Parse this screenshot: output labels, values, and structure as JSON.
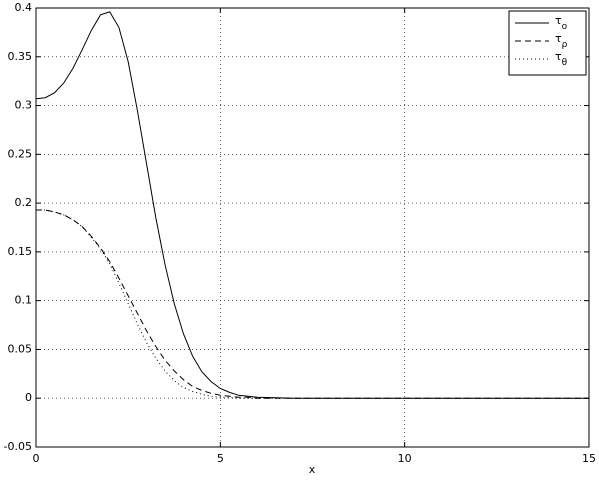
{
  "chart_data": {
    "type": "line",
    "xlabel": "x",
    "x": [
      0,
      0.25,
      0.5,
      0.75,
      1,
      1.25,
      1.5,
      1.75,
      2,
      2.25,
      2.5,
      2.75,
      3,
      3.25,
      3.5,
      3.75,
      4,
      4.25,
      4.5,
      4.75,
      5,
      5.25,
      5.5,
      5.75,
      6,
      7,
      8,
      10,
      12,
      15
    ],
    "series": [
      {
        "name": "τo",
        "color": "#000000",
        "dash": "solid",
        "values": [
          0.307,
          0.308,
          0.313,
          0.323,
          0.338,
          0.357,
          0.377,
          0.393,
          0.396,
          0.38,
          0.345,
          0.295,
          0.24,
          0.185,
          0.137,
          0.097,
          0.066,
          0.043,
          0.027,
          0.017,
          0.01,
          0.006,
          0.003,
          0.002,
          0.001,
          0,
          0,
          0,
          0,
          0
        ]
      },
      {
        "name": "τρ",
        "color": "#000000",
        "dash": "dashed",
        "values": [
          0.193,
          0.193,
          0.191,
          0.188,
          0.183,
          0.176,
          0.166,
          0.154,
          0.14,
          0.123,
          0.105,
          0.087,
          0.069,
          0.053,
          0.039,
          0.028,
          0.019,
          0.012,
          0.008,
          0.005,
          0.003,
          0.002,
          0.001,
          0.001,
          0,
          0,
          0,
          0,
          0,
          0
        ]
      },
      {
        "name": "τθ",
        "color": "#000000",
        "dash": "dotted",
        "values": [
          0.193,
          0.193,
          0.191,
          0.188,
          0.183,
          0.176,
          0.165,
          0.153,
          0.138,
          0.118,
          0.097,
          0.076,
          0.057,
          0.041,
          0.028,
          0.018,
          0.011,
          0.007,
          0.004,
          0.002,
          0.001,
          0.001,
          0,
          0,
          0,
          0,
          0,
          0,
          0,
          0
        ]
      }
    ],
    "xlim": [
      0,
      15
    ],
    "ylim": [
      -0.05,
      0.4
    ],
    "xticks": [
      0,
      5,
      10,
      15
    ],
    "yticks": [
      -0.05,
      0,
      0.05,
      0.1,
      0.15,
      0.2,
      0.25,
      0.3,
      0.35,
      0.4
    ],
    "grid": true,
    "legend": "top-right"
  }
}
